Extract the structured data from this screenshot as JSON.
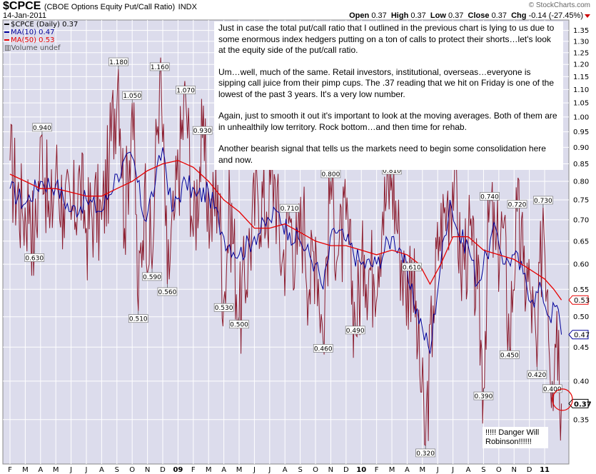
{
  "header": {
    "symbol": "$CPCE",
    "name": "(CBOE Options Equity Put/Call Ratio)",
    "exchange": "INDX",
    "date": "14-Jan-2011",
    "watermark": "© StockCharts.com",
    "open_label": "Open",
    "open": "0.37",
    "high_label": "High",
    "high": "0.37",
    "low_label": "Low",
    "low": "0.37",
    "close_label": "Close",
    "close": "0.37",
    "chg_label": "Chg",
    "chg": "-0.14 (-27.45%)"
  },
  "legend": {
    "line1": "$CPCE (Daily) 0.37",
    "line2": "MA(10) 0.47",
    "line3": "MA(50) 0.53",
    "line4": "Volume undef"
  },
  "colors": {
    "background": "#dcdcec",
    "grid": "#ffffff",
    "price": "#8b1c2e",
    "ma10": "#000099",
    "ma50": "#e60000",
    "annotation_circle": "#e60000"
  },
  "commentary": {
    "p1": "Just in case the total put/call ratio that I outlined in the previous chart is lying to us due to some enormous index hedgers putting on a ton of calls to protect their shorts…let's look at the equity side of the put/call ratio.",
    "p2": "Um…well, much of the same. Retail investors, institutional, overseas…everyone is sipping call juice from their pimp cups. The .37 reading that we hit on Friday is one of the lowest of the past 3 years. It's a very low number.",
    "p3": "Again, just to smooth it out it's important to look at the moving averages. Both of them are in unhealthily low territory. Rock bottom…and then time for rehab.",
    "p4": "Another bearish signal that tells us the markets need to begin some consolidation here and now."
  },
  "annotation": {
    "text": "!!!!! Danger Will Robinson!!!!!!"
  },
  "chart_data": {
    "type": "line",
    "scale": "log",
    "ylim": [
      0.3,
      1.4
    ],
    "y_ticks": [
      0.35,
      0.4,
      0.45,
      0.5,
      0.55,
      0.6,
      0.65,
      0.7,
      0.75,
      0.8,
      0.85,
      0.9,
      0.95,
      1.0,
      1.05,
      1.1,
      1.15,
      1.2,
      1.25,
      1.3,
      1.35
    ],
    "x_tick_labels": [
      "F",
      "M",
      "A",
      "M",
      "J",
      "J",
      "A",
      "S",
      "O",
      "N",
      "D",
      "09",
      "F",
      "M",
      "A",
      "M",
      "J",
      "J",
      "A",
      "S",
      "O",
      "N",
      "D",
      "10",
      "F",
      "M",
      "A",
      "M",
      "J",
      "J",
      "A",
      "S",
      "O",
      "N",
      "D",
      "11"
    ],
    "x_range": [
      0,
      36.4
    ],
    "series": [
      {
        "name": "$CPCE (Daily)",
        "last": 0.37
      },
      {
        "name": "MA(10)",
        "last": 0.47
      },
      {
        "name": "MA(50)",
        "last": 0.53
      }
    ],
    "price_path": [
      [
        0.0,
        0.86
      ],
      [
        0.8,
        0.72
      ],
      [
        1.3,
        0.75
      ],
      [
        1.6,
        0.63
      ],
      [
        2.1,
        0.94
      ],
      [
        2.6,
        0.68
      ],
      [
        3.0,
        0.83
      ],
      [
        3.5,
        0.74
      ],
      [
        4.0,
        0.7
      ],
      [
        4.6,
        0.8
      ],
      [
        5.0,
        0.68
      ],
      [
        5.5,
        0.74
      ],
      [
        6.0,
        0.7
      ],
      [
        6.5,
        0.86
      ],
      [
        7.1,
        1.18
      ],
      [
        7.5,
        0.68
      ],
      [
        8.0,
        1.05
      ],
      [
        8.4,
        0.51
      ],
      [
        8.8,
        0.78
      ],
      [
        9.3,
        0.59
      ],
      [
        9.8,
        1.16
      ],
      [
        10.3,
        0.56
      ],
      [
        10.8,
        0.72
      ],
      [
        11.5,
        1.07
      ],
      [
        12.0,
        0.66
      ],
      [
        12.6,
        0.93
      ],
      [
        13.1,
        0.69
      ],
      [
        13.6,
        0.79
      ],
      [
        14.0,
        0.53
      ],
      [
        14.4,
        0.74
      ],
      [
        15.0,
        0.5
      ],
      [
        15.6,
        0.62
      ],
      [
        16.2,
        0.78
      ],
      [
        16.8,
        0.72
      ],
      [
        17.3,
        0.82
      ],
      [
        17.8,
        0.6
      ],
      [
        18.3,
        0.71
      ],
      [
        18.8,
        0.62
      ],
      [
        19.2,
        0.72
      ],
      [
        19.6,
        0.55
      ],
      [
        20.0,
        0.66
      ],
      [
        20.5,
        0.46
      ],
      [
        21.0,
        0.8
      ],
      [
        21.5,
        0.62
      ],
      [
        22.0,
        0.7
      ],
      [
        22.6,
        0.49
      ],
      [
        23.2,
        0.62
      ],
      [
        23.8,
        0.58
      ],
      [
        24.4,
        0.72
      ],
      [
        25.0,
        0.81
      ],
      [
        25.5,
        0.65
      ],
      [
        25.9,
        0.55
      ],
      [
        26.3,
        0.61
      ],
      [
        26.7,
        0.45
      ],
      [
        27.2,
        0.32
      ],
      [
        27.7,
        0.52
      ],
      [
        28.1,
        0.66
      ],
      [
        28.6,
        0.74
      ],
      [
        29.1,
        0.83
      ],
      [
        29.5,
        0.59
      ],
      [
        30.0,
        0.66
      ],
      [
        30.6,
        0.55
      ],
      [
        31.0,
        0.39
      ],
      [
        31.4,
        0.74
      ],
      [
        31.8,
        0.63
      ],
      [
        32.3,
        0.68
      ],
      [
        32.7,
        0.45
      ],
      [
        33.2,
        0.72
      ],
      [
        33.6,
        0.6
      ],
      [
        34.1,
        0.54
      ],
      [
        34.5,
        0.42
      ],
      [
        34.9,
        0.73
      ],
      [
        35.2,
        0.55
      ],
      [
        35.5,
        0.4
      ],
      [
        35.8,
        0.51
      ],
      [
        36.1,
        0.37
      ]
    ],
    "ma10_path": [
      [
        0.0,
        0.78
      ],
      [
        1.0,
        0.74
      ],
      [
        2.0,
        0.8
      ],
      [
        3.0,
        0.79
      ],
      [
        4.0,
        0.72
      ],
      [
        5.0,
        0.75
      ],
      [
        6.0,
        0.72
      ],
      [
        7.0,
        0.82
      ],
      [
        8.0,
        0.87
      ],
      [
        8.8,
        0.7
      ],
      [
        9.5,
        0.79
      ],
      [
        10.0,
        0.9
      ],
      [
        10.6,
        0.72
      ],
      [
        11.5,
        0.8
      ],
      [
        12.2,
        0.76
      ],
      [
        13.0,
        0.77
      ],
      [
        14.0,
        0.66
      ],
      [
        15.0,
        0.62
      ],
      [
        16.0,
        0.66
      ],
      [
        17.0,
        0.7
      ],
      [
        17.5,
        0.72
      ],
      [
        18.3,
        0.67
      ],
      [
        19.0,
        0.65
      ],
      [
        20.0,
        0.6
      ],
      [
        20.5,
        0.55
      ],
      [
        21.2,
        0.68
      ],
      [
        22.0,
        0.65
      ],
      [
        23.0,
        0.6
      ],
      [
        24.0,
        0.6
      ],
      [
        25.0,
        0.66
      ],
      [
        25.6,
        0.63
      ],
      [
        26.2,
        0.55
      ],
      [
        27.0,
        0.48
      ],
      [
        27.5,
        0.44
      ],
      [
        28.2,
        0.6
      ],
      [
        28.8,
        0.75
      ],
      [
        29.4,
        0.66
      ],
      [
        30.0,
        0.64
      ],
      [
        30.6,
        0.56
      ],
      [
        31.2,
        0.62
      ],
      [
        31.8,
        0.68
      ],
      [
        32.4,
        0.6
      ],
      [
        33.0,
        0.62
      ],
      [
        33.6,
        0.58
      ],
      [
        34.2,
        0.53
      ],
      [
        34.8,
        0.55
      ],
      [
        35.3,
        0.5
      ],
      [
        35.8,
        0.52
      ],
      [
        36.1,
        0.47
      ]
    ],
    "ma50_path": [
      [
        0.0,
        0.82
      ],
      [
        1.0,
        0.8
      ],
      [
        2.0,
        0.78
      ],
      [
        3.0,
        0.78
      ],
      [
        4.0,
        0.77
      ],
      [
        5.0,
        0.76
      ],
      [
        6.0,
        0.76
      ],
      [
        7.0,
        0.78
      ],
      [
        8.0,
        0.8
      ],
      [
        9.0,
        0.83
      ],
      [
        10.0,
        0.85
      ],
      [
        11.0,
        0.86
      ],
      [
        12.0,
        0.84
      ],
      [
        13.0,
        0.8
      ],
      [
        14.0,
        0.75
      ],
      [
        15.0,
        0.72
      ],
      [
        16.0,
        0.68
      ],
      [
        17.0,
        0.68
      ],
      [
        18.0,
        0.69
      ],
      [
        19.0,
        0.67
      ],
      [
        20.0,
        0.65
      ],
      [
        21.0,
        0.64
      ],
      [
        22.0,
        0.64
      ],
      [
        23.0,
        0.63
      ],
      [
        24.0,
        0.62
      ],
      [
        25.0,
        0.63
      ],
      [
        26.0,
        0.62
      ],
      [
        26.8,
        0.6
      ],
      [
        27.5,
        0.56
      ],
      [
        28.2,
        0.6
      ],
      [
        29.0,
        0.66
      ],
      [
        30.0,
        0.66
      ],
      [
        31.0,
        0.63
      ],
      [
        32.0,
        0.62
      ],
      [
        33.0,
        0.61
      ],
      [
        34.0,
        0.59
      ],
      [
        35.0,
        0.57
      ],
      [
        35.6,
        0.55
      ],
      [
        36.1,
        0.53
      ]
    ],
    "peak_labels": [
      {
        "x": 2.1,
        "value": 0.94,
        "text": "0.940"
      },
      {
        "x": 7.1,
        "value": 1.18,
        "text": "1.180"
      },
      {
        "x": 8.0,
        "value": 1.05,
        "text": "1.050"
      },
      {
        "x": 9.8,
        "value": 1.16,
        "text": "1.160"
      },
      {
        "x": 11.5,
        "value": 1.07,
        "text": "1.070"
      },
      {
        "x": 12.6,
        "value": 0.93,
        "text": "0.930"
      },
      {
        "x": 18.3,
        "value": 0.71,
        "text": "0.710"
      },
      {
        "x": 21.0,
        "value": 0.8,
        "text": "0.800"
      },
      {
        "x": 25.0,
        "value": 0.81,
        "text": "0.810"
      },
      {
        "x": 31.4,
        "value": 0.74,
        "text": "0.740"
      },
      {
        "x": 33.2,
        "value": 0.72,
        "text": "0.720"
      },
      {
        "x": 34.9,
        "value": 0.73,
        "text": "0.730"
      }
    ],
    "trough_labels": [
      {
        "x": 1.6,
        "value": 0.63,
        "text": "0.630"
      },
      {
        "x": 8.4,
        "value": 0.51,
        "text": "0.510"
      },
      {
        "x": 9.3,
        "value": 0.59,
        "text": "0.590"
      },
      {
        "x": 10.3,
        "value": 0.56,
        "text": "0.560"
      },
      {
        "x": 14.0,
        "value": 0.53,
        "text": "0.530"
      },
      {
        "x": 15.0,
        "value": 0.5,
        "text": "0.500"
      },
      {
        "x": 20.5,
        "value": 0.46,
        "text": "0.460"
      },
      {
        "x": 22.6,
        "value": 0.49,
        "text": "0.490"
      },
      {
        "x": 26.3,
        "value": 0.61,
        "text": "0.610"
      },
      {
        "x": 27.2,
        "value": 0.32,
        "text": "0.320"
      },
      {
        "x": 31.0,
        "value": 0.39,
        "text": "0.390"
      },
      {
        "x": 32.7,
        "value": 0.45,
        "text": "0.450"
      },
      {
        "x": 34.5,
        "value": 0.42,
        "text": "0.420"
      },
      {
        "x": 35.5,
        "value": 0.4,
        "text": "0.400"
      }
    ],
    "last_value_tags": [
      {
        "value": 0.53,
        "text": "0.53",
        "series": "MA(50)"
      },
      {
        "value": 0.47,
        "text": "0.47",
        "series": "MA(10)"
      },
      {
        "value": 0.37,
        "text": "0.37",
        "series": "$CPCE (Daily)"
      }
    ]
  }
}
